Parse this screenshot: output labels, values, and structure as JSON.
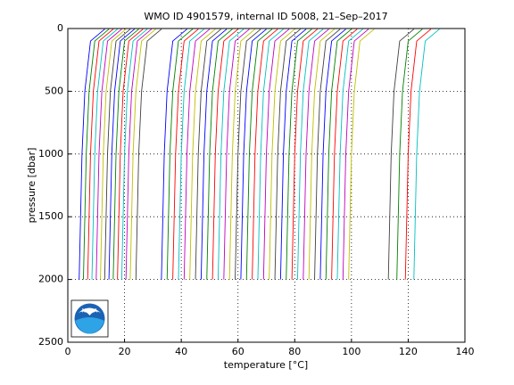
{
  "chart_data": {
    "type": "line",
    "title": "WMO ID 4901579, internal ID 5008, 21–Sep–2017",
    "xlabel": "temperature [°C]",
    "ylabel": "pressure [dbar]",
    "xlim": [
      0,
      140
    ],
    "xticks": [
      0,
      20,
      40,
      60,
      80,
      100,
      120,
      140
    ],
    "ylim": [
      0,
      2500
    ],
    "yticks": [
      0,
      500,
      1000,
      1500,
      2000,
      2500
    ],
    "y_reversed": true,
    "grid": true,
    "series": [
      {
        "color": "#0000ff",
        "x": [
          4,
          5,
          6,
          8,
          13
        ],
        "values": [
          2000,
          1000,
          500,
          100,
          5
        ]
      },
      {
        "color": "#008000",
        "x": [
          5.5,
          6.5,
          7.5,
          9.5,
          14.5
        ],
        "values": [
          2000,
          1000,
          500,
          100,
          5
        ]
      },
      {
        "color": "#ff0000",
        "x": [
          7,
          8,
          9,
          11,
          16
        ],
        "values": [
          2000,
          1000,
          500,
          100,
          5
        ]
      },
      {
        "color": "#00bfbf",
        "x": [
          8.5,
          9.5,
          10.5,
          12.5,
          17.5
        ],
        "values": [
          2000,
          1000,
          500,
          100,
          5
        ]
      },
      {
        "color": "#bf00bf",
        "x": [
          10,
          11,
          12,
          14,
          19
        ],
        "values": [
          2000,
          1000,
          500,
          100,
          5
        ]
      },
      {
        "color": "#bfbf00",
        "x": [
          11.5,
          12.5,
          13.5,
          15.5,
          20.5
        ],
        "values": [
          2000,
          1000,
          500,
          100,
          5
        ]
      },
      {
        "color": "#404040",
        "x": [
          13,
          14,
          15,
          17,
          22
        ],
        "values": [
          2000,
          1000,
          500,
          100,
          5
        ]
      },
      {
        "color": "#0000ff",
        "x": [
          14.5,
          15.5,
          16.5,
          18.5,
          23.5
        ],
        "values": [
          2000,
          1000,
          500,
          100,
          5
        ]
      },
      {
        "color": "#008000",
        "x": [
          16,
          17,
          18,
          20,
          25
        ],
        "values": [
          2000,
          1000,
          500,
          100,
          5
        ]
      },
      {
        "color": "#ff0000",
        "x": [
          17.5,
          18.5,
          19.5,
          21.5,
          26.5
        ],
        "values": [
          2000,
          1000,
          500,
          100,
          5
        ]
      },
      {
        "color": "#00bfbf",
        "x": [
          19,
          20,
          21,
          23,
          28
        ],
        "values": [
          2000,
          1000,
          500,
          100,
          5
        ]
      },
      {
        "color": "#bf00bf",
        "x": [
          20.5,
          21.5,
          22.5,
          24.5,
          29.5
        ],
        "values": [
          2000,
          1000,
          500,
          100,
          5
        ]
      },
      {
        "color": "#bfbf00",
        "x": [
          22,
          23,
          24,
          26,
          31
        ],
        "values": [
          2000,
          1000,
          500,
          100,
          5
        ]
      },
      {
        "color": "#404040",
        "x": [
          24,
          25,
          26,
          28,
          33
        ],
        "values": [
          2000,
          1000,
          500,
          100,
          5
        ]
      },
      {
        "color": "#0000ff",
        "x": [
          33,
          34,
          35,
          37,
          42
        ],
        "values": [
          2000,
          1000,
          500,
          100,
          5
        ]
      },
      {
        "color": "#008000",
        "x": [
          35,
          36,
          37,
          39,
          44
        ],
        "values": [
          2000,
          1000,
          500,
          100,
          5
        ]
      },
      {
        "color": "#ff0000",
        "x": [
          37,
          38,
          39,
          41,
          46
        ],
        "values": [
          2000,
          1000,
          500,
          100,
          5
        ]
      },
      {
        "color": "#00bfbf",
        "x": [
          39,
          40,
          41,
          43,
          48
        ],
        "values": [
          2000,
          1000,
          500,
          100,
          5
        ]
      },
      {
        "color": "#bf00bf",
        "x": [
          41,
          42,
          43,
          45,
          50
        ],
        "values": [
          2000,
          1000,
          500,
          100,
          5
        ]
      },
      {
        "color": "#bfbf00",
        "x": [
          43,
          44,
          45,
          47,
          52
        ],
        "values": [
          2000,
          1000,
          500,
          100,
          5
        ]
      },
      {
        "color": "#404040",
        "x": [
          45,
          46,
          47,
          49,
          54
        ],
        "values": [
          2000,
          1000,
          500,
          100,
          5
        ]
      },
      {
        "color": "#0000ff",
        "x": [
          47,
          48,
          49,
          51,
          56
        ],
        "values": [
          2000,
          1000,
          500,
          100,
          5
        ]
      },
      {
        "color": "#008000",
        "x": [
          49,
          50,
          51,
          53,
          58
        ],
        "values": [
          2000,
          1000,
          500,
          100,
          5
        ]
      },
      {
        "color": "#ff0000",
        "x": [
          51,
          52,
          53,
          55,
          60
        ],
        "values": [
          2000,
          1000,
          500,
          100,
          5
        ]
      },
      {
        "color": "#00bfbf",
        "x": [
          53,
          54,
          55,
          57,
          62
        ],
        "values": [
          2000,
          1000,
          500,
          100,
          5
        ]
      },
      {
        "color": "#bf00bf",
        "x": [
          55,
          56,
          57,
          59,
          64
        ],
        "values": [
          2000,
          1000,
          500,
          100,
          5
        ]
      },
      {
        "color": "#bfbf00",
        "x": [
          57,
          58,
          59,
          61,
          66
        ],
        "values": [
          2000,
          1000,
          500,
          100,
          5
        ]
      },
      {
        "color": "#404040",
        "x": [
          59,
          60,
          61,
          63,
          68
        ],
        "values": [
          2000,
          1000,
          500,
          100,
          5
        ]
      },
      {
        "color": "#0000ff",
        "x": [
          61,
          62,
          63,
          65,
          70
        ],
        "values": [
          2000,
          1000,
          500,
          100,
          5
        ]
      },
      {
        "color": "#008000",
        "x": [
          63,
          64,
          65,
          67,
          72
        ],
        "values": [
          2000,
          1000,
          500,
          100,
          5
        ]
      },
      {
        "color": "#ff0000",
        "x": [
          65,
          66,
          67,
          69,
          74
        ],
        "values": [
          2000,
          1000,
          500,
          100,
          5
        ]
      },
      {
        "color": "#00bfbf",
        "x": [
          67,
          68,
          69,
          71,
          76
        ],
        "values": [
          2000,
          1000,
          500,
          100,
          5
        ]
      },
      {
        "color": "#bf00bf",
        "x": [
          69,
          70,
          71,
          73,
          78
        ],
        "values": [
          2000,
          1000,
          500,
          100,
          5
        ]
      },
      {
        "color": "#bfbf00",
        "x": [
          71,
          72,
          73,
          75,
          80
        ],
        "values": [
          2000,
          1000,
          500,
          100,
          5
        ]
      },
      {
        "color": "#404040",
        "x": [
          73,
          74,
          75,
          77,
          82
        ],
        "values": [
          2000,
          1000,
          500,
          100,
          5
        ]
      },
      {
        "color": "#0000ff",
        "x": [
          75,
          76,
          77,
          79,
          84
        ],
        "values": [
          2000,
          1000,
          500,
          100,
          5
        ]
      },
      {
        "color": "#008000",
        "x": [
          77,
          78,
          79,
          81,
          86
        ],
        "values": [
          2000,
          1000,
          500,
          100,
          5
        ]
      },
      {
        "color": "#ff0000",
        "x": [
          79,
          80,
          81,
          83,
          88
        ],
        "values": [
          2000,
          1000,
          500,
          100,
          5
        ]
      },
      {
        "color": "#00bfbf",
        "x": [
          81,
          82,
          83,
          85,
          90
        ],
        "values": [
          2000,
          1000,
          500,
          100,
          5
        ]
      },
      {
        "color": "#bf00bf",
        "x": [
          83,
          84,
          85,
          87,
          92
        ],
        "values": [
          2000,
          1000,
          500,
          100,
          5
        ]
      },
      {
        "color": "#bfbf00",
        "x": [
          85,
          86,
          87,
          89,
          94
        ],
        "values": [
          2000,
          1000,
          500,
          100,
          5
        ]
      },
      {
        "color": "#404040",
        "x": [
          87,
          88,
          89,
          91,
          96
        ],
        "values": [
          2000,
          1000,
          500,
          100,
          5
        ]
      },
      {
        "color": "#0000ff",
        "x": [
          89,
          90,
          91,
          93,
          98
        ],
        "values": [
          2000,
          1000,
          500,
          100,
          5
        ]
      },
      {
        "color": "#008000",
        "x": [
          91,
          92,
          93,
          95,
          100
        ],
        "values": [
          2000,
          1000,
          500,
          100,
          5
        ]
      },
      {
        "color": "#ff0000",
        "x": [
          93,
          94,
          95,
          97,
          102
        ],
        "values": [
          2000,
          1000,
          500,
          100,
          5
        ]
      },
      {
        "color": "#00bfbf",
        "x": [
          95,
          96,
          97,
          99,
          104
        ],
        "values": [
          2000,
          1000,
          500,
          100,
          5
        ]
      },
      {
        "color": "#bf00bf",
        "x": [
          97,
          98,
          99,
          101,
          106
        ],
        "values": [
          2000,
          1000,
          500,
          100,
          5
        ]
      },
      {
        "color": "#bfbf00",
        "x": [
          99,
          100,
          101,
          103,
          108
        ],
        "values": [
          2000,
          1000,
          500,
          100,
          5
        ]
      },
      {
        "color": "#404040",
        "x": [
          113,
          114,
          115,
          117,
          122
        ],
        "values": [
          2000,
          1000,
          500,
          100,
          5
        ]
      },
      {
        "color": "#008000",
        "x": [
          116,
          117,
          118,
          120,
          125
        ],
        "values": [
          2000,
          1000,
          500,
          100,
          5
        ]
      },
      {
        "color": "#ff0000",
        "x": [
          119,
          120,
          121,
          123,
          128
        ],
        "values": [
          2000,
          1000,
          500,
          100,
          5
        ]
      },
      {
        "color": "#00bfbf",
        "x": [
          122,
          123,
          124,
          126,
          131
        ],
        "values": [
          2000,
          1000,
          500,
          100,
          5
        ]
      }
    ]
  }
}
